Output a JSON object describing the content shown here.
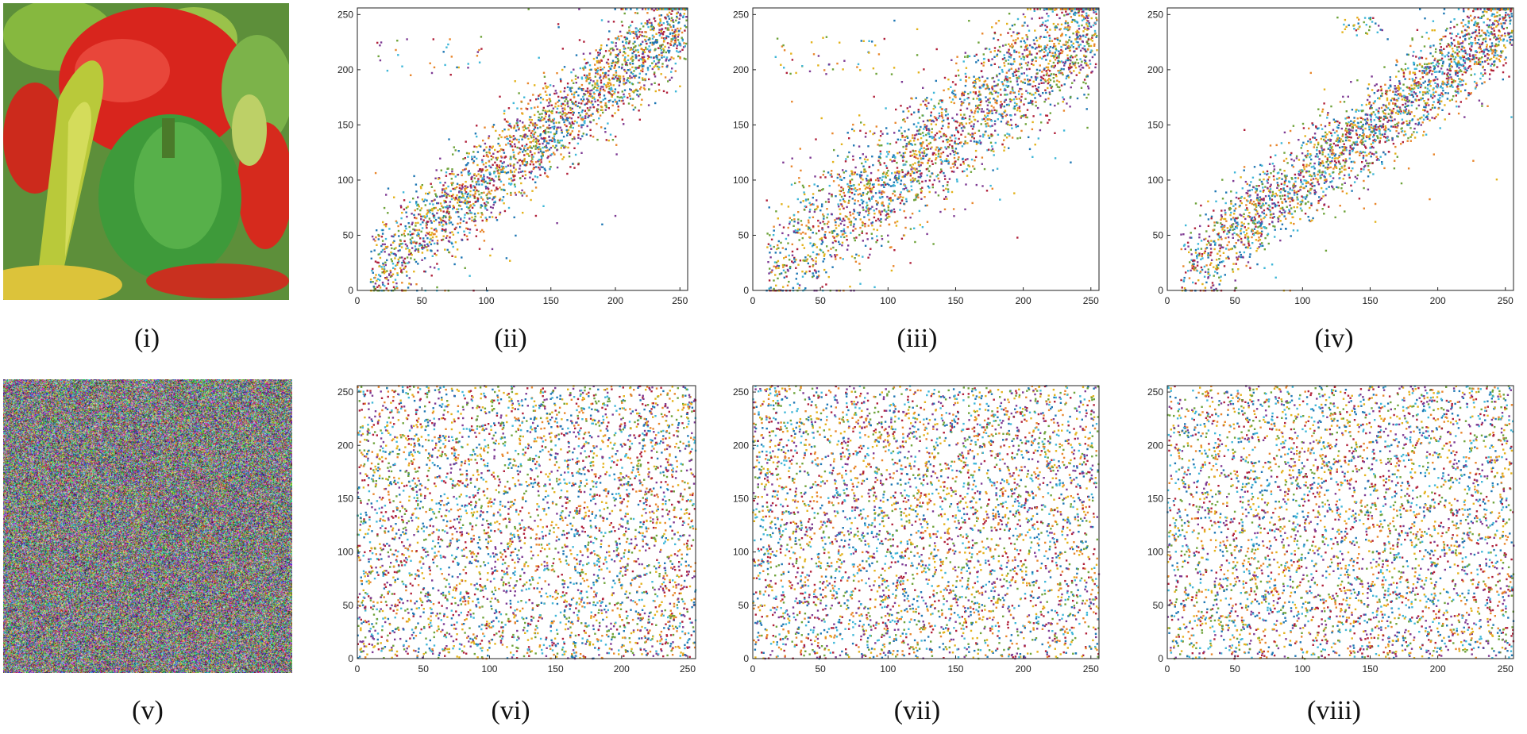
{
  "figure": {
    "captions": [
      "(i)",
      "(ii)",
      "(iii)",
      "(iv)",
      "(v)",
      "(vi)",
      "(vii)",
      "(viii)"
    ],
    "colors": {
      "blue": "#1f77b4",
      "orange": "#e8862b",
      "yellow": "#e3b21b",
      "purple": "#7e3a93",
      "green": "#6ea33a",
      "cyan": "#3fb7d8",
      "red": "#b0203a"
    }
  },
  "images": [
    {
      "panel": "i",
      "kind": "original-peppers-image"
    },
    {
      "panel": "v",
      "kind": "encrypted-noise-image"
    }
  ],
  "chart_data": [
    {
      "panel": "ii",
      "type": "scatter",
      "title": "",
      "xlabel": "",
      "ylabel": "",
      "xlim": [
        0,
        256
      ],
      "ylim": [
        0,
        256
      ],
      "xticks": [
        0,
        50,
        100,
        150,
        200,
        250
      ],
      "yticks": [
        0,
        50,
        100,
        150,
        200,
        250
      ],
      "pattern": "diagonal",
      "spread": 22,
      "outlier_cluster": {
        "x": [
          15,
          110
        ],
        "y": [
          195,
          230
        ]
      },
      "points": 2600
    },
    {
      "panel": "iii",
      "type": "scatter",
      "title": "",
      "xlabel": "",
      "ylabel": "",
      "xlim": [
        0,
        256
      ],
      "ylim": [
        0,
        256
      ],
      "xticks": [
        0,
        50,
        100,
        150,
        200,
        250
      ],
      "yticks": [
        0,
        50,
        100,
        150,
        200,
        250
      ],
      "pattern": "diagonal",
      "spread": 30,
      "outlier_cluster": {
        "x": [
          15,
          100
        ],
        "y": [
          195,
          230
        ]
      },
      "points": 2600
    },
    {
      "panel": "iv",
      "type": "scatter",
      "title": "",
      "xlabel": "",
      "ylabel": "",
      "xlim": [
        0,
        256
      ],
      "ylim": [
        0,
        256
      ],
      "xticks": [
        0,
        50,
        100,
        150,
        200,
        250
      ],
      "yticks": [
        0,
        50,
        100,
        150,
        200,
        250
      ],
      "pattern": "diagonal",
      "spread": 20,
      "outlier_cluster": {
        "x": [
          125,
          160
        ],
        "y": [
          230,
          250
        ]
      },
      "points": 2600
    },
    {
      "panel": "vi",
      "type": "scatter",
      "title": "",
      "xlabel": "",
      "ylabel": "",
      "xlim": [
        0,
        256
      ],
      "ylim": [
        0,
        256
      ],
      "xticks": [
        0,
        50,
        100,
        150,
        200,
        250
      ],
      "yticks": [
        0,
        50,
        100,
        150,
        200,
        250
      ],
      "pattern": "uniform",
      "points": 4200
    },
    {
      "panel": "vii",
      "type": "scatter",
      "title": "",
      "xlabel": "",
      "ylabel": "",
      "xlim": [
        0,
        256
      ],
      "ylim": [
        0,
        256
      ],
      "xticks": [
        0,
        50,
        100,
        150,
        200,
        250
      ],
      "yticks": [
        0,
        50,
        100,
        150,
        200,
        250
      ],
      "pattern": "uniform",
      "points": 4200
    },
    {
      "panel": "viii",
      "type": "scatter",
      "title": "",
      "xlabel": "",
      "ylabel": "",
      "xlim": [
        0,
        256
      ],
      "ylim": [
        0,
        256
      ],
      "xticks": [
        0,
        50,
        100,
        150,
        200,
        250
      ],
      "yticks": [
        0,
        50,
        100,
        150,
        200,
        250
      ],
      "pattern": "uniform",
      "points": 4200
    }
  ]
}
